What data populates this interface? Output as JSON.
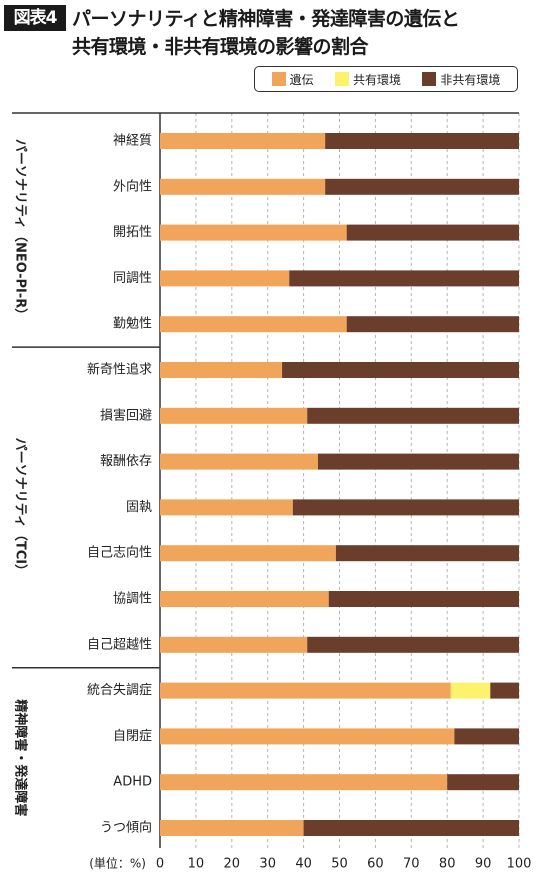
{
  "header": {
    "badge": "図表4",
    "title_line1": "パーソナリティと精神障害・発達障害の遺伝と",
    "title_line2": "共有環境・非共有環境の影響の割合"
  },
  "colors": {
    "genetic": "#f0a55a",
    "shared": "#fdf26b",
    "nonshared": "#6b3e2c",
    "grid": "#b5b5b5",
    "axis": "#333333"
  },
  "chart_data": {
    "type": "bar",
    "orientation": "horizontal",
    "stacked": true,
    "xlim": [
      0,
      100
    ],
    "x_ticks": [
      0,
      10,
      20,
      30,
      40,
      50,
      60,
      70,
      80,
      90,
      100
    ],
    "unit_label": "(単位：%)",
    "legend_position": "top-right",
    "grid": "vertical dashed",
    "series": [
      {
        "name": "遺伝",
        "color_key": "genetic"
      },
      {
        "name": "共有環境",
        "color_key": "shared"
      },
      {
        "name": "非共有環境",
        "color_key": "nonshared"
      }
    ],
    "groups": [
      {
        "label": "パーソナリティ（NEO-PI-R）",
        "start": 0,
        "end": 4
      },
      {
        "label": "パーソナリティ（TCI）",
        "start": 5,
        "end": 11
      },
      {
        "label": "精神障害・発達障害",
        "start": 12,
        "end": 15
      }
    ],
    "rows": [
      {
        "label": "神経質",
        "values": [
          46,
          0,
          54
        ]
      },
      {
        "label": "外向性",
        "values": [
          46,
          0,
          54
        ]
      },
      {
        "label": "開拓性",
        "values": [
          52,
          0,
          48
        ]
      },
      {
        "label": "同調性",
        "values": [
          36,
          0,
          64
        ]
      },
      {
        "label": "勤勉性",
        "values": [
          52,
          0,
          48
        ]
      },
      {
        "label": "新奇性追求",
        "values": [
          34,
          0,
          66
        ]
      },
      {
        "label": "損害回避",
        "values": [
          41,
          0,
          59
        ]
      },
      {
        "label": "報酬依存",
        "values": [
          44,
          0,
          56
        ]
      },
      {
        "label": "固執",
        "values": [
          37,
          0,
          63
        ]
      },
      {
        "label": "自己志向性",
        "values": [
          49,
          0,
          51
        ]
      },
      {
        "label": "協調性",
        "values": [
          47,
          0,
          53
        ]
      },
      {
        "label": "自己超越性",
        "values": [
          41,
          0,
          59
        ]
      },
      {
        "label": "統合失調症",
        "values": [
          81,
          11,
          8
        ]
      },
      {
        "label": "自閉症",
        "values": [
          82,
          0,
          18
        ]
      },
      {
        "label": "ADHD",
        "values": [
          80,
          0,
          20
        ]
      },
      {
        "label": "うつ傾向",
        "values": [
          40,
          0,
          60
        ]
      }
    ]
  }
}
